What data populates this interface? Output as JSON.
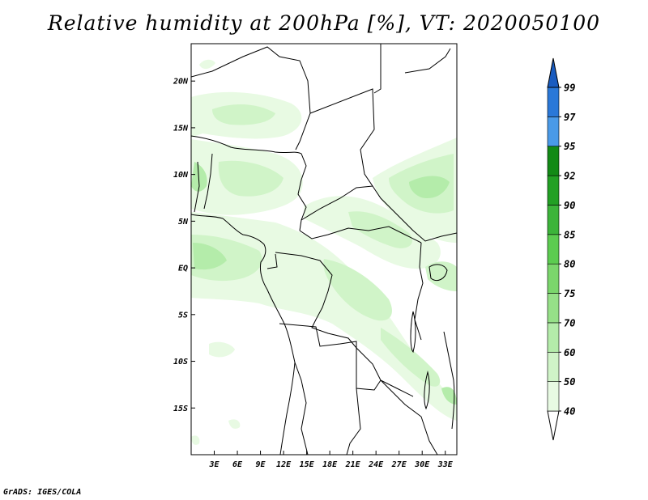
{
  "title": "Relative humidity at 200hPa [%], VT: 2020050100",
  "footer": "GrADS: IGES/COLA",
  "map": {
    "lon_range": [
      0,
      34.5
    ],
    "lat_range": [
      -20,
      24
    ],
    "lat_ticks": [
      {
        "value": 20,
        "label": "20N"
      },
      {
        "value": 15,
        "label": "15N"
      },
      {
        "value": 10,
        "label": "10N"
      },
      {
        "value": 5,
        "label": "5N"
      },
      {
        "value": 0,
        "label": "EQ"
      },
      {
        "value": -5,
        "label": "5S"
      },
      {
        "value": -10,
        "label": "10S"
      },
      {
        "value": -15,
        "label": "15S"
      }
    ],
    "lon_ticks": [
      {
        "value": 3,
        "label": "3E"
      },
      {
        "value": 6,
        "label": "6E"
      },
      {
        "value": 9,
        "label": "9E"
      },
      {
        "value": 12,
        "label": "12E"
      },
      {
        "value": 15,
        "label": "15E"
      },
      {
        "value": 18,
        "label": "18E"
      },
      {
        "value": 21,
        "label": "21E"
      },
      {
        "value": 24,
        "label": "24E"
      },
      {
        "value": 27,
        "label": "27E"
      },
      {
        "value": 30,
        "label": "30E"
      },
      {
        "value": 33,
        "label": "33E"
      }
    ]
  },
  "colorbar": {
    "levels": [
      {
        "value": 40,
        "label": "40",
        "color": "#e8fae3"
      },
      {
        "value": 50,
        "label": "50",
        "color": "#d0f4c8"
      },
      {
        "value": 60,
        "label": "60",
        "color": "#b4ecaa"
      },
      {
        "value": 70,
        "label": "70",
        "color": "#96e088"
      },
      {
        "value": 75,
        "label": "75",
        "color": "#7bd66c"
      },
      {
        "value": 80,
        "label": "80",
        "color": "#5ccc50"
      },
      {
        "value": 85,
        "label": "85",
        "color": "#3cb43a"
      },
      {
        "value": 90,
        "label": "90",
        "color": "#22a024"
      },
      {
        "value": 92,
        "label": "92",
        "color": "#128a16"
      },
      {
        "value": 95,
        "label": "95",
        "color": "#4a9ae8"
      },
      {
        "value": 97,
        "label": "97",
        "color": "#2a78d8"
      },
      {
        "value": 99,
        "label": "99",
        "color": "#1a5cc0"
      }
    ]
  }
}
